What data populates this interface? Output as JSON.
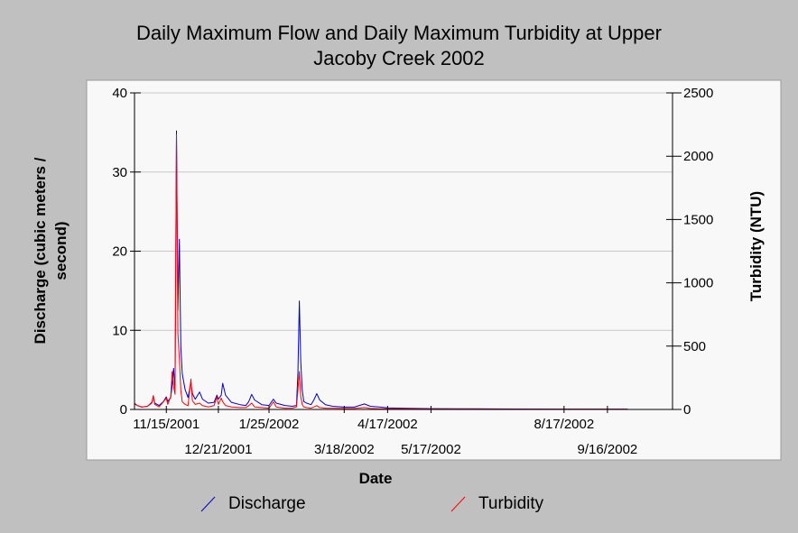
{
  "chart_data": {
    "type": "line",
    "title_lines": [
      "Daily Maximum Flow and Daily Maximum Turbidity at Upper",
      "Jacoby Creek 2002"
    ],
    "xlabel": "Date",
    "ylabel_left_lines": [
      "Discharge (cubic meters /",
      "second)"
    ],
    "ylabel_right": "Turbidity (NTU)",
    "x_range": [
      "2001-10-24",
      "2002-10-31"
    ],
    "x_ticks": [
      {
        "date": "2001-11-15",
        "label": "11/15/2001",
        "row": 0
      },
      {
        "date": "2001-12-21",
        "label": "12/21/2001",
        "row": 1
      },
      {
        "date": "2002-01-25",
        "label": "1/25/2002",
        "row": 0
      },
      {
        "date": "2002-03-18",
        "label": "3/18/2002",
        "row": 1
      },
      {
        "date": "2002-04-17",
        "label": "4/17/2002",
        "row": 0
      },
      {
        "date": "2002-05-17",
        "label": "5/17/2002",
        "row": 1
      },
      {
        "date": "2002-08-17",
        "label": "8/17/2002",
        "row": 0
      },
      {
        "date": "2002-09-16",
        "label": "9/16/2002",
        "row": 1
      }
    ],
    "y_left": {
      "min": 0,
      "max": 40,
      "ticks": [
        0,
        10,
        20,
        30,
        40
      ]
    },
    "y_right": {
      "min": 0,
      "max": 2500,
      "ticks": [
        0,
        500,
        1000,
        1500,
        2000,
        2500
      ]
    },
    "grid": true,
    "legend_position": "bottom",
    "series": [
      {
        "name": "Discharge",
        "axis": "left",
        "color": "#0000cc",
        "points": [
          [
            "2001-10-24",
            0.7
          ],
          [
            "2001-10-26",
            0.5
          ],
          [
            "2001-10-29",
            0.3
          ],
          [
            "2001-11-02",
            0.4
          ],
          [
            "2001-11-05",
            0.9
          ],
          [
            "2001-11-06",
            1.7
          ],
          [
            "2001-11-07",
            0.8
          ],
          [
            "2001-11-10",
            0.5
          ],
          [
            "2001-11-13",
            1.0
          ],
          [
            "2001-11-15",
            1.6
          ],
          [
            "2001-11-16",
            1.0
          ],
          [
            "2001-11-18",
            1.5
          ],
          [
            "2001-11-19",
            3.0
          ],
          [
            "2001-11-20",
            5.2
          ],
          [
            "2001-11-21",
            2.5
          ],
          [
            "2001-11-22",
            35.2
          ],
          [
            "2001-11-23",
            12.5
          ],
          [
            "2001-11-24",
            21.5
          ],
          [
            "2001-11-25",
            8.0
          ],
          [
            "2001-11-26",
            4.5
          ],
          [
            "2001-11-28",
            2.5
          ],
          [
            "2001-11-30",
            1.5
          ],
          [
            "2001-12-02",
            3.5
          ],
          [
            "2001-12-03",
            2.0
          ],
          [
            "2001-12-05",
            1.3
          ],
          [
            "2001-12-08",
            2.2
          ],
          [
            "2001-12-10",
            1.3
          ],
          [
            "2001-12-14",
            0.8
          ],
          [
            "2001-12-18",
            0.9
          ],
          [
            "2001-12-20",
            1.8
          ],
          [
            "2001-12-21",
            1.3
          ],
          [
            "2001-12-23",
            1.8
          ],
          [
            "2001-12-24",
            3.3
          ],
          [
            "2001-12-26",
            1.8
          ],
          [
            "2001-12-30",
            0.9
          ],
          [
            "2002-01-05",
            0.6
          ],
          [
            "2002-01-09",
            0.5
          ],
          [
            "2002-01-11",
            1.0
          ],
          [
            "2002-01-13",
            1.9
          ],
          [
            "2002-01-15",
            1.2
          ],
          [
            "2002-01-20",
            0.6
          ],
          [
            "2002-01-25",
            0.5
          ],
          [
            "2002-01-28",
            1.3
          ],
          [
            "2002-01-30",
            0.8
          ],
          [
            "2002-02-05",
            0.5
          ],
          [
            "2002-02-10",
            0.4
          ],
          [
            "2002-02-13",
            0.5
          ],
          [
            "2002-02-14",
            4.5
          ],
          [
            "2002-02-15",
            13.7
          ],
          [
            "2002-02-16",
            6.0
          ],
          [
            "2002-02-17",
            2.5
          ],
          [
            "2002-02-18",
            1.0
          ],
          [
            "2002-02-20",
            0.8
          ],
          [
            "2002-02-23",
            0.6
          ],
          [
            "2002-02-25",
            1.2
          ],
          [
            "2002-02-27",
            2.0
          ],
          [
            "2002-03-01",
            1.2
          ],
          [
            "2002-03-05",
            0.6
          ],
          [
            "2002-03-10",
            0.4
          ],
          [
            "2002-03-18",
            0.3
          ],
          [
            "2002-03-25",
            0.3
          ],
          [
            "2002-04-01",
            0.7
          ],
          [
            "2002-04-05",
            0.4
          ],
          [
            "2002-04-12",
            0.3
          ],
          [
            "2002-04-17",
            0.2
          ],
          [
            "2002-05-01",
            0.15
          ],
          [
            "2002-05-17",
            0.1
          ],
          [
            "2002-06-15",
            0.08
          ],
          [
            "2002-07-15",
            0.06
          ],
          [
            "2002-08-17",
            0.05
          ],
          [
            "2002-09-16",
            0.05
          ],
          [
            "2002-09-30",
            0.05
          ]
        ]
      },
      {
        "name": "Turbidity",
        "axis": "right",
        "color": "#ff0000",
        "points": [
          [
            "2001-10-24",
            50
          ],
          [
            "2001-10-26",
            30
          ],
          [
            "2001-10-29",
            20
          ],
          [
            "2001-11-02",
            25
          ],
          [
            "2001-11-05",
            50
          ],
          [
            "2001-11-06",
            110
          ],
          [
            "2001-11-07",
            40
          ],
          [
            "2001-11-10",
            20
          ],
          [
            "2001-11-13",
            60
          ],
          [
            "2001-11-15",
            90
          ],
          [
            "2001-11-16",
            40
          ],
          [
            "2001-11-18",
            100
          ],
          [
            "2001-11-19",
            300
          ],
          [
            "2001-11-20",
            180
          ],
          [
            "2001-11-21",
            120
          ],
          [
            "2001-11-22",
            2170
          ],
          [
            "2001-11-23",
            600
          ],
          [
            "2001-11-24",
            400
          ],
          [
            "2001-11-25",
            150
          ],
          [
            "2001-11-26",
            60
          ],
          [
            "2001-11-28",
            40
          ],
          [
            "2001-11-30",
            30
          ],
          [
            "2001-12-02",
            240
          ],
          [
            "2001-12-03",
            70
          ],
          [
            "2001-12-05",
            40
          ],
          [
            "2001-12-08",
            50
          ],
          [
            "2001-12-10",
            30
          ],
          [
            "2001-12-14",
            20
          ],
          [
            "2001-12-18",
            30
          ],
          [
            "2001-12-20",
            100
          ],
          [
            "2001-12-21",
            40
          ],
          [
            "2001-12-23",
            90
          ],
          [
            "2001-12-24",
            60
          ],
          [
            "2001-12-26",
            30
          ],
          [
            "2001-12-30",
            20
          ],
          [
            "2002-01-05",
            15
          ],
          [
            "2002-01-09",
            15
          ],
          [
            "2002-01-11",
            30
          ],
          [
            "2002-01-13",
            50
          ],
          [
            "2002-01-15",
            20
          ],
          [
            "2002-01-20",
            15
          ],
          [
            "2002-01-25",
            10
          ],
          [
            "2002-01-28",
            60
          ],
          [
            "2002-01-30",
            20
          ],
          [
            "2002-02-05",
            10
          ],
          [
            "2002-02-10",
            10
          ],
          [
            "2002-02-13",
            20
          ],
          [
            "2002-02-14",
            150
          ],
          [
            "2002-02-15",
            300
          ],
          [
            "2002-02-16",
            100
          ],
          [
            "2002-02-17",
            40
          ],
          [
            "2002-02-18",
            20
          ],
          [
            "2002-02-20",
            15
          ],
          [
            "2002-02-23",
            10
          ],
          [
            "2002-02-25",
            20
          ],
          [
            "2002-02-27",
            30
          ],
          [
            "2002-03-01",
            15
          ],
          [
            "2002-03-05",
            10
          ],
          [
            "2002-03-10",
            10
          ],
          [
            "2002-03-18",
            8
          ],
          [
            "2002-03-25",
            8
          ],
          [
            "2002-04-01",
            15
          ],
          [
            "2002-04-05",
            8
          ],
          [
            "2002-04-12",
            6
          ],
          [
            "2002-04-17",
            5
          ],
          [
            "2002-05-01",
            4
          ],
          [
            "2002-05-17",
            3
          ],
          [
            "2002-06-15",
            3
          ],
          [
            "2002-07-15",
            2
          ],
          [
            "2002-08-17",
            2
          ],
          [
            "2002-09-16",
            2
          ],
          [
            "2002-09-30",
            2
          ]
        ]
      }
    ]
  }
}
